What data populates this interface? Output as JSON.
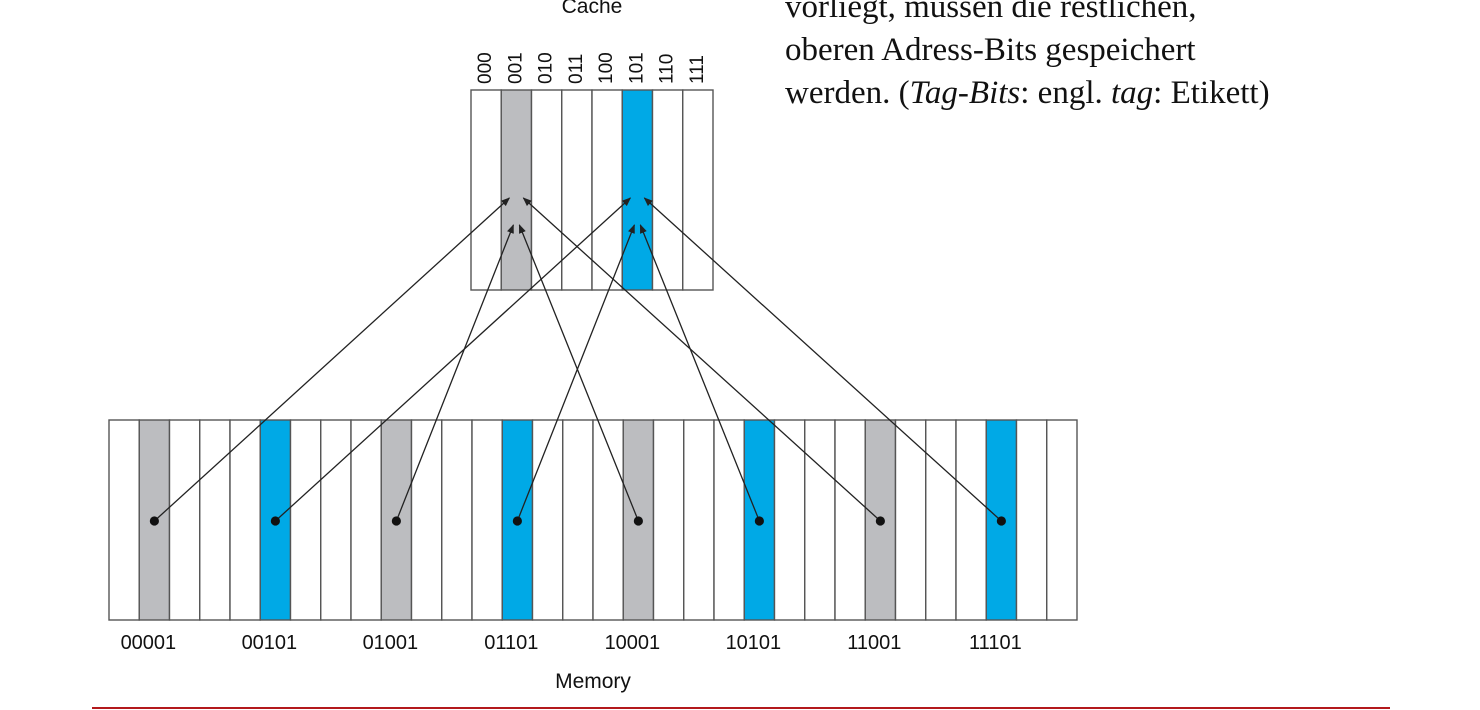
{
  "colors": {
    "highlight_gray": "#bcbdc0",
    "highlight_blue": "#00a9e6",
    "line": "#222222",
    "rule": "#b3191c"
  },
  "text": {
    "lines": [
      {
        "parts": [
          {
            "text": "vorliegt, müssen die restlichen,",
            "italic": false
          }
        ]
      },
      {
        "parts": [
          {
            "text": "oberen Adress-Bits gespeichert",
            "italic": false
          }
        ]
      },
      {
        "parts": [
          {
            "text": "werden. (",
            "italic": false
          },
          {
            "text": "Tag-Bits",
            "italic": true
          },
          {
            "text": ": engl. ",
            "italic": false
          },
          {
            "text": "tag",
            "italic": true
          },
          {
            "text": ": Etikett)",
            "italic": false
          }
        ]
      }
    ]
  },
  "cache": {
    "title": "Cache",
    "slots": [
      {
        "label": "000",
        "highlight": "none"
      },
      {
        "label": "001",
        "highlight": "gray"
      },
      {
        "label": "010",
        "highlight": "none"
      },
      {
        "label": "011",
        "highlight": "none"
      },
      {
        "label": "100",
        "highlight": "none"
      },
      {
        "label": "101",
        "highlight": "blue"
      },
      {
        "label": "110",
        "highlight": "none"
      },
      {
        "label": "111",
        "highlight": "none"
      }
    ]
  },
  "memory": {
    "title": "Memory",
    "addresses": [
      {
        "label": "00001",
        "highlight": "gray",
        "maps_to_slot": "001"
      },
      {
        "label": "00101",
        "highlight": "blue",
        "maps_to_slot": "101"
      },
      {
        "label": "01001",
        "highlight": "gray",
        "maps_to_slot": "001"
      },
      {
        "label": "01101",
        "highlight": "blue",
        "maps_to_slot": "101"
      },
      {
        "label": "10001",
        "highlight": "gray",
        "maps_to_slot": "001"
      },
      {
        "label": "10101",
        "highlight": "blue",
        "maps_to_slot": "101"
      },
      {
        "label": "11001",
        "highlight": "gray",
        "maps_to_slot": "001"
      },
      {
        "label": "11101",
        "highlight": "blue",
        "maps_to_slot": "101"
      }
    ]
  }
}
